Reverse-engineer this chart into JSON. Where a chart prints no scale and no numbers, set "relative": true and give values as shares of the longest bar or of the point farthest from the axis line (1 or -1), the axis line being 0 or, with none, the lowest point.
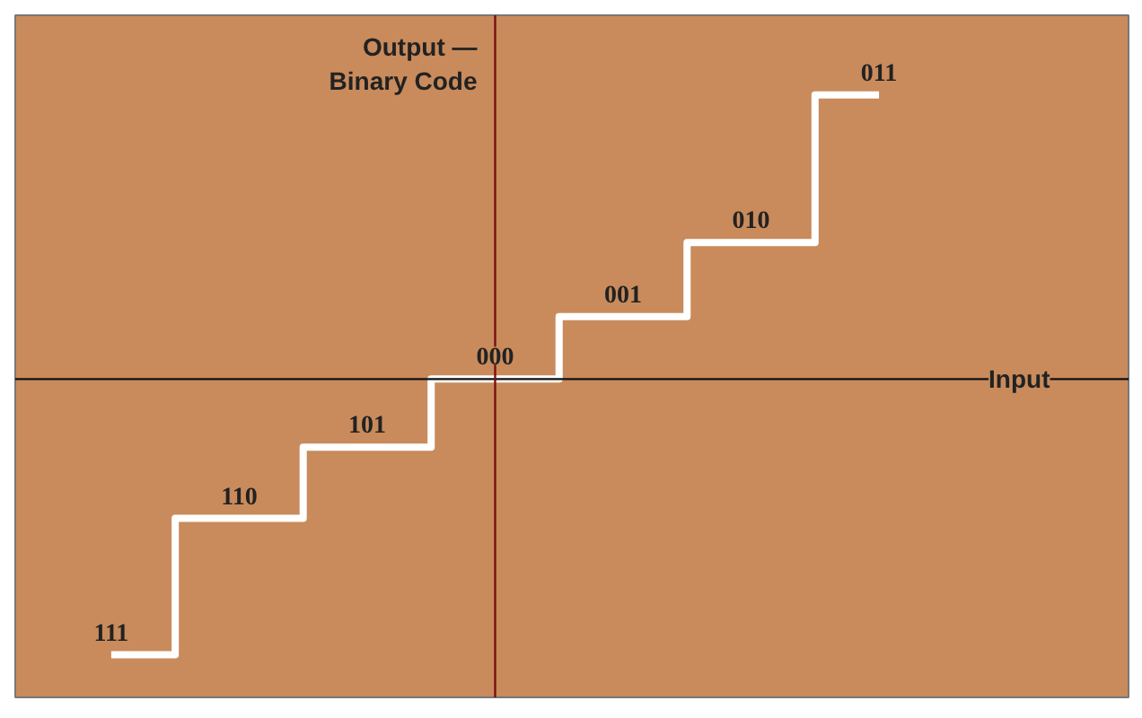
{
  "chart_data": {
    "type": "step",
    "relative": true,
    "xlabel": "Input",
    "ylabel": "Output —\nBinary Code",
    "categories": [
      null,
      null,
      null,
      null,
      null,
      null,
      null
    ],
    "values": [
      -0.97,
      -0.49,
      -0.24,
      0,
      0.22,
      0.48,
      1
    ],
    "annotations": [
      "111",
      "110",
      "101",
      "000",
      "001",
      "010",
      "011"
    ],
    "color": "#ffffff"
  }
}
